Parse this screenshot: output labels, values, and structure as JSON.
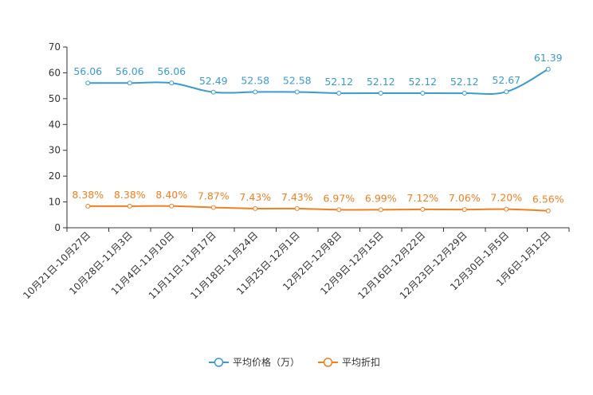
{
  "chart_data": {
    "type": "line",
    "title": "",
    "xlabel": "",
    "ylabel": "",
    "ylim": [
      0,
      70
    ],
    "yticks": [
      0,
      10,
      20,
      30,
      40,
      50,
      60,
      70
    ],
    "grid": false,
    "legend_position": "bottom-center",
    "categories": [
      "10月21日-10月27日",
      "10月28日-11月3日",
      "11月4日-11月10日",
      "11月11日-11月17日",
      "11月18日-11月24日",
      "11月25日-12月1日",
      "12月2日-12月8日",
      "12月9日-12月15日",
      "12月16日-12月22日",
      "12月23日-12月29日",
      "12月30日-1月5日",
      "1月6日-1月12日"
    ],
    "series": [
      {
        "name": "平均价格（万）",
        "color": "#3a9bd0",
        "values": [
          56.06,
          56.06,
          56.06,
          52.49,
          52.58,
          52.58,
          52.12,
          52.12,
          52.12,
          52.12,
          52.67,
          61.39
        ],
        "labels": [
          "56.06",
          "56.06",
          "56.06",
          "52.49",
          "52.58",
          "52.58",
          "52.12",
          "52.12",
          "52.12",
          "52.12",
          "52.67",
          "61.39"
        ]
      },
      {
        "name": "平均折扣",
        "color": "#f07f21",
        "values": [
          8.38,
          8.38,
          8.4,
          7.87,
          7.43,
          7.43,
          6.97,
          6.99,
          7.12,
          7.06,
          7.2,
          6.56
        ],
        "labels": [
          "8.38%",
          "8.38%",
          "8.40%",
          "7.87%",
          "7.43%",
          "7.43%",
          "6.97%",
          "6.99%",
          "7.12%",
          "7.06%",
          "7.20%",
          "6.56%"
        ]
      }
    ]
  }
}
